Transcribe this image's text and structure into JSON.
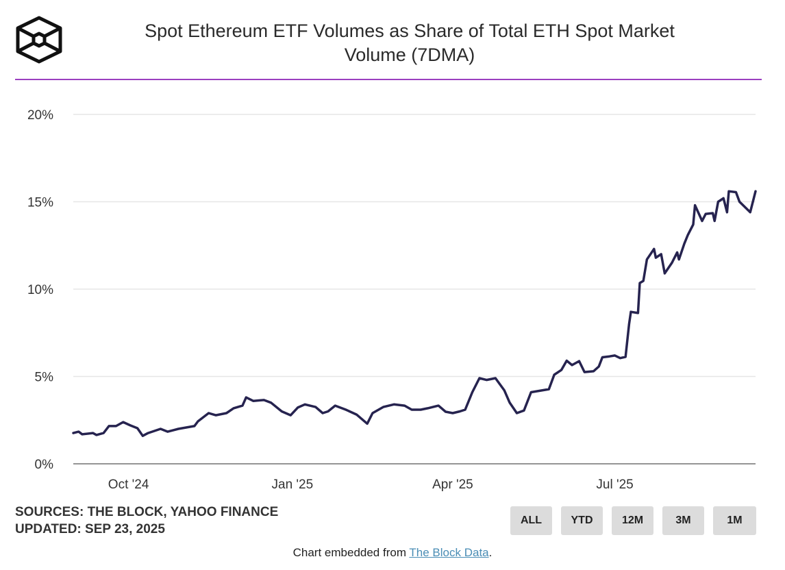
{
  "header": {
    "title_line1": "Spot Ethereum ETF Volumes as Share of Total ETH Spot Market",
    "title_line2": "Volume (7DMA)",
    "accent_color": "#9b3fc0",
    "logo": "the-block-cube-logo"
  },
  "chart_data": {
    "type": "line",
    "title": "Spot Ethereum ETF Volumes as Share of Total ETH Spot Market Volume (7DMA)",
    "ylim": [
      0,
      20
    ],
    "xlim": [
      "2024-08-31",
      "2025-09-18"
    ],
    "y_ticks": [
      {
        "v": 0,
        "label": "0%"
      },
      {
        "v": 5,
        "label": "5%"
      },
      {
        "v": 10,
        "label": "10%"
      },
      {
        "v": 15,
        "label": "15%"
      },
      {
        "v": 20,
        "label": "20%"
      }
    ],
    "x_ticks": [
      {
        "date": "2024-10-01",
        "label": "Oct '24"
      },
      {
        "date": "2025-01-01",
        "label": "Jan '25"
      },
      {
        "date": "2025-04-01",
        "label": "Apr '25"
      },
      {
        "date": "2025-07-01",
        "label": "Jul '25"
      }
    ],
    "grid": true,
    "line_color": "#26234f",
    "series": [
      {
        "points": [
          [
            "2024-08-31",
            1.76
          ],
          [
            "2024-09-03",
            1.84
          ],
          [
            "2024-09-05",
            1.69
          ],
          [
            "2024-09-11",
            1.76
          ],
          [
            "2024-09-13",
            1.65
          ],
          [
            "2024-09-17",
            1.76
          ],
          [
            "2024-09-20",
            2.16
          ],
          [
            "2024-09-24",
            2.16
          ],
          [
            "2024-09-28",
            2.39
          ],
          [
            "2024-10-02",
            2.2
          ],
          [
            "2024-10-06",
            2.04
          ],
          [
            "2024-10-09",
            1.6
          ],
          [
            "2024-10-12",
            1.76
          ],
          [
            "2024-10-19",
            2.0
          ],
          [
            "2024-10-23",
            1.84
          ],
          [
            "2024-10-29",
            2.0
          ],
          [
            "2024-11-07",
            2.16
          ],
          [
            "2024-11-09",
            2.43
          ],
          [
            "2024-11-15",
            2.9
          ],
          [
            "2024-11-19",
            2.78
          ],
          [
            "2024-11-25",
            2.9
          ],
          [
            "2024-11-29",
            3.18
          ],
          [
            "2024-12-04",
            3.33
          ],
          [
            "2024-12-06",
            3.8
          ],
          [
            "2024-12-10",
            3.6
          ],
          [
            "2024-12-16",
            3.65
          ],
          [
            "2024-12-20",
            3.5
          ],
          [
            "2024-12-26",
            3.0
          ],
          [
            "2024-12-31",
            2.78
          ],
          [
            "2025-01-04",
            3.22
          ],
          [
            "2025-01-08",
            3.4
          ],
          [
            "2025-01-14",
            3.25
          ],
          [
            "2025-01-18",
            2.9
          ],
          [
            "2025-01-21",
            3.0
          ],
          [
            "2025-01-25",
            3.33
          ],
          [
            "2025-01-31",
            3.1
          ],
          [
            "2025-02-06",
            2.82
          ],
          [
            "2025-02-12",
            2.3
          ],
          [
            "2025-02-15",
            2.9
          ],
          [
            "2025-02-21",
            3.25
          ],
          [
            "2025-02-27",
            3.4
          ],
          [
            "2025-03-05",
            3.33
          ],
          [
            "2025-03-09",
            3.1
          ],
          [
            "2025-03-14",
            3.1
          ],
          [
            "2025-03-18",
            3.18
          ],
          [
            "2025-03-24",
            3.33
          ],
          [
            "2025-03-28",
            2.98
          ],
          [
            "2025-04-01",
            2.9
          ],
          [
            "2025-04-05",
            3.0
          ],
          [
            "2025-04-08",
            3.1
          ],
          [
            "2025-04-12",
            4.1
          ],
          [
            "2025-04-16",
            4.9
          ],
          [
            "2025-04-20",
            4.8
          ],
          [
            "2025-04-25",
            4.9
          ],
          [
            "2025-04-30",
            4.2
          ],
          [
            "2025-05-03",
            3.5
          ],
          [
            "2025-05-07",
            2.9
          ],
          [
            "2025-05-11",
            3.05
          ],
          [
            "2025-05-15",
            4.1
          ],
          [
            "2025-05-21",
            4.2
          ],
          [
            "2025-05-25",
            4.27
          ],
          [
            "2025-05-28",
            5.1
          ],
          [
            "2025-06-01",
            5.37
          ],
          [
            "2025-06-04",
            5.9
          ],
          [
            "2025-06-07",
            5.65
          ],
          [
            "2025-06-11",
            5.88
          ],
          [
            "2025-06-14",
            5.25
          ],
          [
            "2025-06-19",
            5.3
          ],
          [
            "2025-06-22",
            5.57
          ],
          [
            "2025-06-24",
            6.1
          ],
          [
            "2025-06-28",
            6.15
          ],
          [
            "2025-07-01",
            6.2
          ],
          [
            "2025-07-04",
            6.05
          ],
          [
            "2025-07-07",
            6.12
          ],
          [
            "2025-07-09",
            8.0
          ],
          [
            "2025-07-10",
            8.7
          ],
          [
            "2025-07-14",
            8.63
          ],
          [
            "2025-07-15",
            10.35
          ],
          [
            "2025-07-17",
            10.47
          ],
          [
            "2025-07-19",
            11.7
          ],
          [
            "2025-07-23",
            12.3
          ],
          [
            "2025-07-24",
            11.8
          ],
          [
            "2025-07-27",
            12.0
          ],
          [
            "2025-07-29",
            10.9
          ],
          [
            "2025-08-02",
            11.5
          ],
          [
            "2025-08-05",
            12.1
          ],
          [
            "2025-08-06",
            11.7
          ],
          [
            "2025-08-09",
            12.6
          ],
          [
            "2025-08-11",
            13.1
          ],
          [
            "2025-08-14",
            13.7
          ],
          [
            "2025-08-15",
            14.8
          ],
          [
            "2025-08-19",
            13.9
          ],
          [
            "2025-08-21",
            14.3
          ],
          [
            "2025-08-25",
            14.35
          ],
          [
            "2025-08-26",
            13.9
          ],
          [
            "2025-08-28",
            15.0
          ],
          [
            "2025-08-31",
            15.2
          ],
          [
            "2025-09-02",
            14.4
          ],
          [
            "2025-09-03",
            15.6
          ],
          [
            "2025-09-07",
            15.55
          ],
          [
            "2025-09-09",
            15.0
          ],
          [
            "2025-09-15",
            14.4
          ],
          [
            "2025-09-17",
            15.2
          ],
          [
            "2025-09-18",
            15.6
          ]
        ]
      }
    ]
  },
  "footer": {
    "sources": "SOURCES: THE BLOCK, YAHOO FINANCE",
    "updated": "UPDATED: SEP 23, 2025",
    "embed_prefix": "Chart embedded from ",
    "embed_link": "The Block Data",
    "embed_suffix": "."
  },
  "range_buttons": [
    "ALL",
    "YTD",
    "12M",
    "3M",
    "1M"
  ]
}
